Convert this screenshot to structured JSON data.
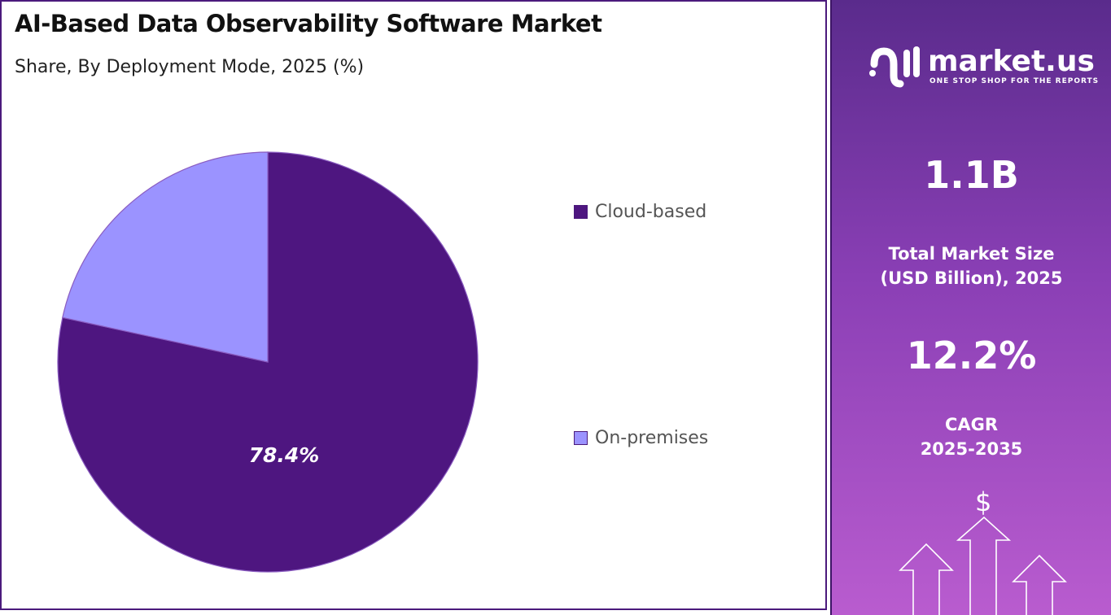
{
  "header": {
    "title": "AI-Based Data Observability Software Market",
    "subtitle": "Share, By Deployment Mode, 2025 (%)"
  },
  "chart_data": {
    "type": "pie",
    "categories": [
      "Cloud-based",
      "On-premises"
    ],
    "values": [
      78.4,
      21.6
    ],
    "data_labels": [
      "78.4%",
      ""
    ],
    "colors": [
      "#4e1680",
      "#9b93ff"
    ],
    "title": "AI-Based Data Observability Software Market",
    "subtitle": "Share, By Deployment Mode, 2025 (%)",
    "legend_position": "right"
  },
  "sidebar": {
    "brand": "market.us",
    "tagline": "ONE STOP SHOP FOR THE REPORTS",
    "market_size": "1.1B",
    "market_size_label_line1": "Total Market Size",
    "market_size_label_line2": "(USD Billion), 2025",
    "cagr": "12.2%",
    "cagr_label_line1": "CAGR",
    "cagr_label_line2": "2025-2035",
    "dollar_symbol": "$",
    "icons": [
      "logo-icon",
      "growth-arrows-icon",
      "dollar-icon"
    ]
  }
}
